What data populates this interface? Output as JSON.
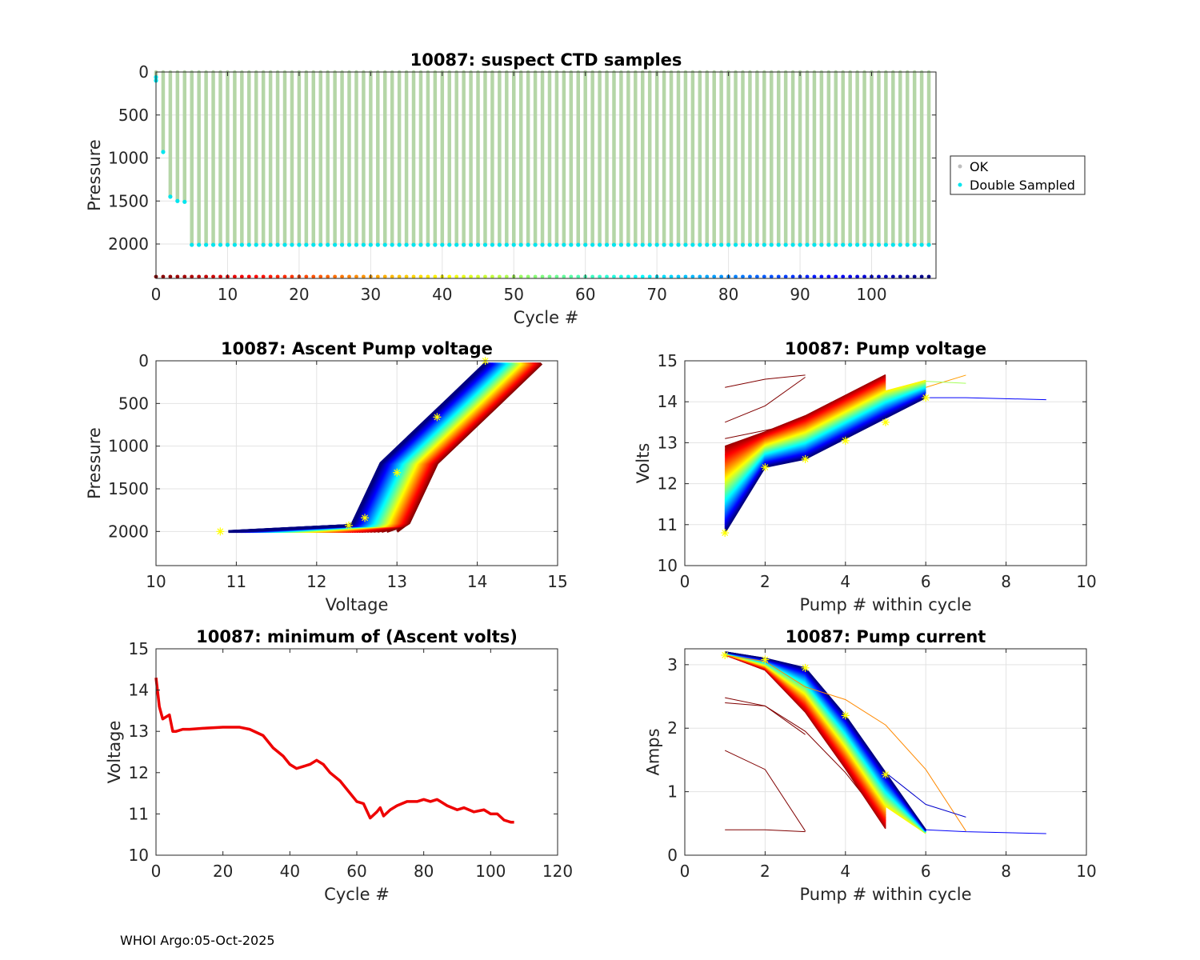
{
  "footer": "WHOI Argo:05-Oct-2025",
  "colormap": "jet",
  "chart_data": [
    {
      "id": "suspect",
      "type": "scatter",
      "title": "10087: suspect CTD samples",
      "xlabel": "Cycle #",
      "ylabel": "Pressure",
      "xlim": [
        0,
        109
      ],
      "ylim": [
        0,
        2400
      ],
      "y_reversed": true,
      "xticks": [
        0,
        10,
        20,
        30,
        40,
        50,
        60,
        70,
        80,
        90,
        100
      ],
      "yticks": [
        0,
        500,
        1000,
        1500,
        2000
      ],
      "grid": true,
      "legend": {
        "position": "outside-right",
        "entries": [
          {
            "label": "OK",
            "color": "#bdbdbd"
          },
          {
            "label": "Double Sampled",
            "color": "#00e5ee"
          }
        ]
      },
      "ok_color": "#b5d6a7",
      "double_color": "#00e5ee",
      "n_cycles": 109,
      "early_profiles": [
        {
          "cycle": 0,
          "max_p": 100
        },
        {
          "cycle": 1,
          "max_p": 930
        },
        {
          "cycle": 2,
          "max_p": 1450
        },
        {
          "cycle": 3,
          "max_p": 1500
        },
        {
          "cycle": 4,
          "max_p": 1510
        }
      ],
      "typical_max_p": 2010,
      "cycle_marker_p": 2380
    },
    {
      "id": "ascent",
      "type": "scatter",
      "title": "10087: Ascent Pump voltage",
      "xlabel": "Voltage",
      "ylabel": "Pressure",
      "xlim": [
        10,
        15
      ],
      "ylim": [
        0,
        2400
      ],
      "y_reversed": true,
      "xticks": [
        10,
        11,
        12,
        13,
        14,
        15
      ],
      "yticks": [
        0,
        500,
        1000,
        1500,
        2000
      ],
      "grid": true,
      "n_cycles": 109,
      "first_cycle": {
        "v_bottom": 13.1,
        "v_top": 14.8
      },
      "last_cycle": {
        "v_bottom": 12.4,
        "v_top": 14.1
      },
      "bottom_pressure": 2000,
      "min_voltage_point": [
        10.8,
        2000
      ],
      "star_points": [
        [
          10.8,
          2000
        ],
        [
          12.4,
          1930
        ],
        [
          12.6,
          1840
        ],
        [
          13.0,
          1310
        ],
        [
          13.5,
          660
        ],
        [
          14.1,
          0
        ]
      ]
    },
    {
      "id": "pumpv",
      "type": "line",
      "title": "10087: Pump voltage",
      "xlabel": "Pump # within cycle",
      "ylabel": "Volts",
      "xlim": [
        0,
        10
      ],
      "ylim": [
        10,
        15
      ],
      "xticks": [
        0,
        2,
        4,
        6,
        8,
        10
      ],
      "yticks": [
        10,
        11,
        12,
        13,
        14,
        15
      ],
      "grid": true,
      "n_cycles": 109,
      "first_cycle_pumps": [
        13.0,
        13.3,
        13.7,
        14.2,
        14.7
      ],
      "last_cycle_pumps": [
        10.8,
        12.4,
        12.6,
        13.1,
        13.6,
        14.1,
        14.1
      ],
      "early_outliers": [
        [
          14.35,
          14.55,
          14.65
        ],
        [
          13.5,
          13.9,
          14.6
        ],
        [
          13.1,
          13.3,
          13.5,
          13.8,
          14.2
        ]
      ],
      "star_points": [
        [
          1,
          10.8
        ],
        [
          2,
          12.4
        ],
        [
          3,
          12.6
        ],
        [
          4,
          13.05
        ],
        [
          5,
          13.5
        ],
        [
          6,
          14.1
        ]
      ]
    },
    {
      "id": "minv",
      "type": "line",
      "title": "10087: minimum of (Ascent volts)",
      "xlabel": "Cycle #",
      "ylabel": "Voltage",
      "xlim": [
        0,
        120
      ],
      "ylim": [
        10,
        15
      ],
      "xticks": [
        0,
        20,
        40,
        60,
        80,
        100,
        120
      ],
      "yticks": [
        10,
        11,
        12,
        13,
        14,
        15
      ],
      "grid": false,
      "color": "#ee0000",
      "x": [
        0,
        1,
        2,
        3,
        4,
        5,
        6,
        8,
        10,
        15,
        20,
        25,
        28,
        32,
        35,
        38,
        40,
        42,
        44,
        46,
        48,
        50,
        52,
        55,
        58,
        60,
        62,
        64,
        66,
        67,
        68,
        70,
        72,
        75,
        78,
        80,
        82,
        84,
        85,
        87,
        90,
        92,
        95,
        98,
        100,
        102,
        104,
        106,
        107
      ],
      "values": [
        14.3,
        13.6,
        13.3,
        13.35,
        13.4,
        13.0,
        13.0,
        13.05,
        13.05,
        13.08,
        13.1,
        13.1,
        13.05,
        12.9,
        12.6,
        12.4,
        12.2,
        12.1,
        12.15,
        12.2,
        12.3,
        12.2,
        12.0,
        11.8,
        11.5,
        11.3,
        11.25,
        10.9,
        11.05,
        11.15,
        10.95,
        11.1,
        11.2,
        11.3,
        11.3,
        11.35,
        11.3,
        11.35,
        11.3,
        11.2,
        11.1,
        11.15,
        11.05,
        11.1,
        11.0,
        11.0,
        10.85,
        10.8,
        10.8
      ]
    },
    {
      "id": "pumpc",
      "type": "line",
      "title": "10087: Pump current",
      "xlabel": "Pump # within cycle",
      "ylabel": "Amps",
      "xlim": [
        0,
        10
      ],
      "ylim": [
        0,
        3.25
      ],
      "xticks": [
        0,
        2,
        4,
        6,
        8,
        10
      ],
      "yticks": [
        0,
        1,
        2,
        3
      ],
      "grid": true,
      "n_cycles": 109,
      "first_cycle_pumps": [
        3.15,
        2.9,
        2.2,
        1.3,
        0.35
      ],
      "last_cycle_pumps": [
        3.2,
        3.1,
        2.95,
        2.2,
        1.3,
        0.4,
        0.35
      ],
      "early_outliers": [
        [
          2.48,
          2.35,
          1.9
        ],
        [
          2.4,
          2.35,
          1.95,
          1.3,
          0.5
        ],
        [
          1.65,
          1.35,
          0.38
        ],
        [
          0.4,
          0.4,
          0.37
        ]
      ],
      "star_points": [
        [
          1,
          3.15
        ],
        [
          2,
          3.08
        ],
        [
          3,
          2.95
        ],
        [
          4,
          2.2
        ],
        [
          5,
          1.27
        ]
      ]
    }
  ]
}
